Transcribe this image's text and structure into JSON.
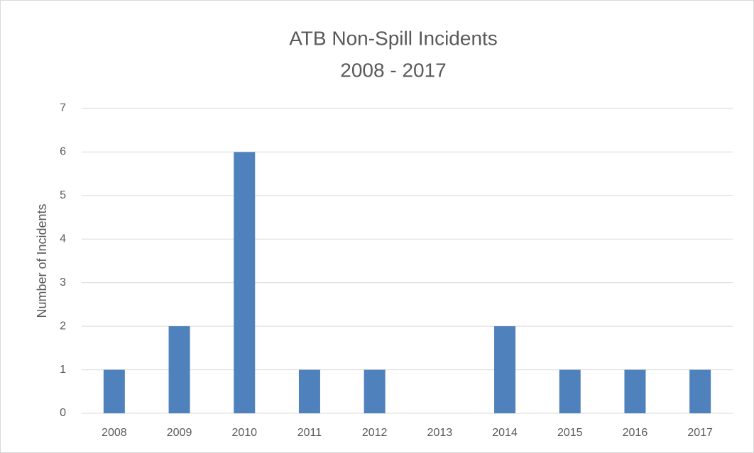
{
  "chart_data": {
    "type": "bar",
    "title": "ATB Non-Spill Incidents",
    "subtitle": "2008 - 2017",
    "y_label": "Number of Incidents",
    "categories": [
      "2008",
      "2009",
      "2010",
      "2011",
      "2012",
      "2013",
      "2014",
      "2015",
      "2016",
      "2017"
    ],
    "values": [
      1,
      2,
      6,
      1,
      1,
      0,
      2,
      1,
      1,
      1
    ],
    "color": "#4f81bd",
    "ylim": [
      0,
      7
    ],
    "yticks": [
      0,
      1,
      2,
      3,
      4,
      5,
      6,
      7
    ],
    "grid": true
  }
}
